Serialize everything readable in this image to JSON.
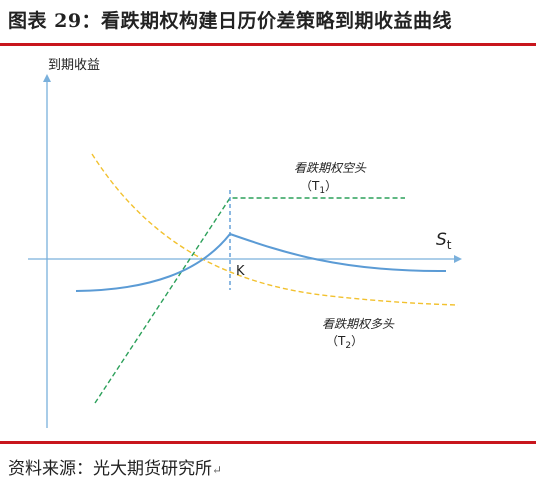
{
  "header": {
    "title": "图表 29：看跌期权构建日历价差策略到期收益曲线"
  },
  "footer": {
    "source": "资料来源：光大期货研究所",
    "paragraph_mark": "↵"
  },
  "diagram": {
    "y_axis_label": "到期收益",
    "x_axis_label_main": "S",
    "x_axis_label_sub": "t",
    "strike_label": "K",
    "short_label": "看跌期权空头",
    "short_tenor_open": "（T",
    "short_tenor_sub": "1",
    "short_tenor_close": "）",
    "long_label": "看跌期权多头",
    "long_tenor_open": "（T",
    "long_tenor_sub": "2",
    "long_tenor_close": "）"
  },
  "colors": {
    "accent_rule": "#c8161d",
    "axis": "#7ab0dc",
    "combined_curve": "#5b9bd5",
    "short_put": "#2ca05a",
    "long_put": "#f2c12e",
    "strike_marker": "#5b9bd5"
  }
}
